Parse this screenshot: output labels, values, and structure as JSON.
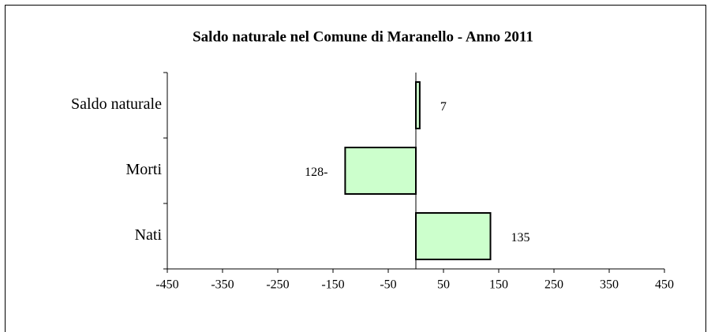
{
  "chart_data": {
    "type": "hbar",
    "title": "Saldo naturale nel Comune di Maranello - Anno 2011",
    "categories": [
      "Nati",
      "Morti",
      "Saldo naturale"
    ],
    "values": [
      135,
      -128,
      7
    ],
    "value_labels": [
      "135",
      "128-",
      "7"
    ],
    "color": "#ccffcc",
    "xlim": [
      -450,
      450
    ],
    "xticks": [
      -450,
      -350,
      -250,
      -150,
      -50,
      50,
      150,
      250,
      350,
      450
    ]
  }
}
